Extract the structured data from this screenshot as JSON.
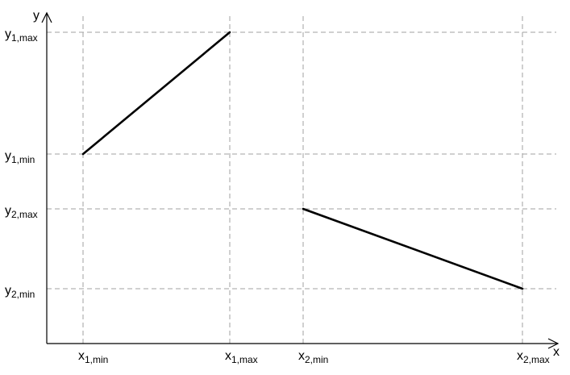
{
  "axes": {
    "x_label": "x",
    "y_label": "y"
  },
  "x_ticks": [
    {
      "base": "x",
      "sub": "1,min"
    },
    {
      "base": "x",
      "sub": "1,max"
    },
    {
      "base": "x",
      "sub": "2,min"
    },
    {
      "base": "x",
      "sub": "2,max"
    }
  ],
  "y_ticks": [
    {
      "base": "y",
      "sub": "1,max"
    },
    {
      "base": "y",
      "sub": "1,min"
    },
    {
      "base": "y",
      "sub": "2,max"
    },
    {
      "base": "y",
      "sub": "2,min"
    }
  ],
  "segments": [
    {
      "name": "segment-1",
      "from": [
        "x1,min",
        "y1,min"
      ],
      "to": [
        "x1,max",
        "y1,max"
      ]
    },
    {
      "name": "segment-2",
      "from": [
        "x2,min",
        "y2,max"
      ],
      "to": [
        "x2,max",
        "y2,min"
      ]
    }
  ]
}
